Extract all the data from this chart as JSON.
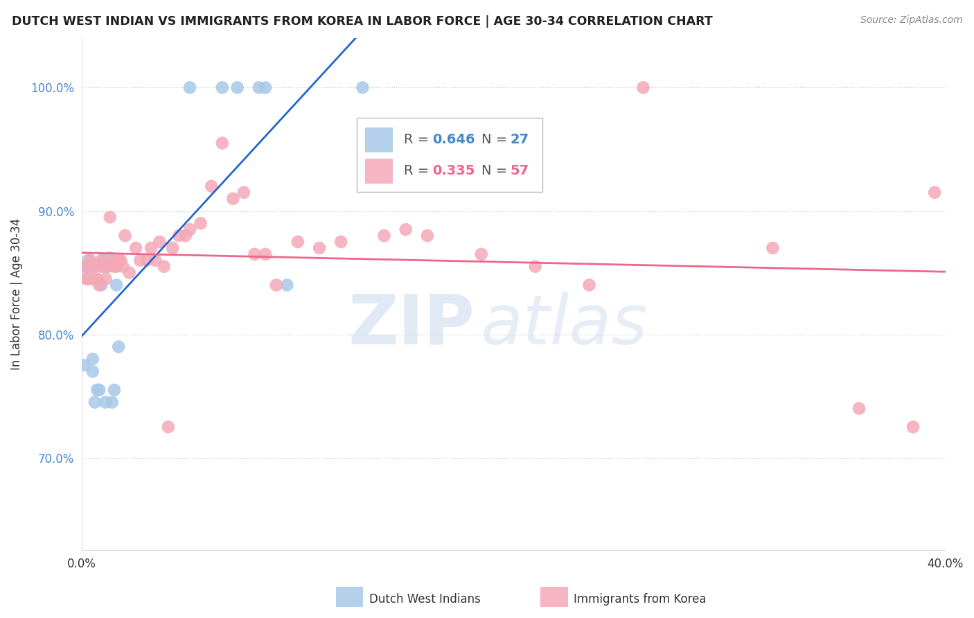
{
  "title": "DUTCH WEST INDIAN VS IMMIGRANTS FROM KOREA IN LABOR FORCE | AGE 30-34 CORRELATION CHART",
  "source": "Source: ZipAtlas.com",
  "ylabel": "In Labor Force | Age 30-34",
  "xlim": [
    0.0,
    0.4
  ],
  "ylim": [
    0.625,
    1.04
  ],
  "xticks": [
    0.0,
    0.05,
    0.1,
    0.15,
    0.2,
    0.25,
    0.3,
    0.35,
    0.4
  ],
  "yticks": [
    0.7,
    0.8,
    0.9,
    1.0
  ],
  "yticklabels": [
    "70.0%",
    "80.0%",
    "90.0%",
    "100.0%"
  ],
  "legend_blue_r": "0.646",
  "legend_blue_n": "27",
  "legend_pink_r": "0.335",
  "legend_pink_n": "57",
  "blue_color": "#A8C8E8",
  "pink_color": "#F4A8B8",
  "blue_line_color": "#2266CC",
  "pink_line_color": "#EE6688",
  "watermark_zip": "ZIP",
  "watermark_atlas": "atlas",
  "blue_x": [
    0.001,
    0.002,
    0.002,
    0.003,
    0.004,
    0.005,
    0.005,
    0.006,
    0.007,
    0.008,
    0.009,
    0.009,
    0.01,
    0.011,
    0.012,
    0.013,
    0.014,
    0.015,
    0.016,
    0.017,
    0.05,
    0.065,
    0.072,
    0.082,
    0.085,
    0.095,
    0.13
  ],
  "blue_y": [
    0.775,
    0.855,
    0.855,
    0.86,
    0.855,
    0.77,
    0.78,
    0.745,
    0.755,
    0.755,
    0.84,
    0.855,
    0.86,
    0.745,
    0.855,
    0.862,
    0.745,
    0.755,
    0.84,
    0.79,
    1.0,
    1.0,
    1.0,
    1.0,
    1.0,
    0.84,
    1.0
  ],
  "pink_x": [
    0.001,
    0.002,
    0.003,
    0.004,
    0.005,
    0.005,
    0.006,
    0.006,
    0.007,
    0.008,
    0.009,
    0.01,
    0.011,
    0.012,
    0.013,
    0.014,
    0.015,
    0.016,
    0.017,
    0.018,
    0.019,
    0.02,
    0.022,
    0.025,
    0.027,
    0.03,
    0.032,
    0.034,
    0.036,
    0.038,
    0.04,
    0.042,
    0.045,
    0.048,
    0.05,
    0.055,
    0.06,
    0.065,
    0.07,
    0.075,
    0.08,
    0.085,
    0.09,
    0.1,
    0.11,
    0.12,
    0.14,
    0.15,
    0.16,
    0.185,
    0.21,
    0.235,
    0.26,
    0.32,
    0.385,
    0.395,
    0.36
  ],
  "pink_y": [
    0.855,
    0.845,
    0.845,
    0.86,
    0.845,
    0.855,
    0.845,
    0.855,
    0.845,
    0.84,
    0.86,
    0.855,
    0.845,
    0.855,
    0.895,
    0.86,
    0.855,
    0.855,
    0.86,
    0.86,
    0.855,
    0.88,
    0.85,
    0.87,
    0.86,
    0.86,
    0.87,
    0.86,
    0.875,
    0.855,
    0.725,
    0.87,
    0.88,
    0.88,
    0.885,
    0.89,
    0.92,
    0.955,
    0.91,
    0.915,
    0.865,
    0.865,
    0.84,
    0.875,
    0.87,
    0.875,
    0.88,
    0.885,
    0.88,
    0.865,
    0.855,
    0.84,
    1.0,
    0.87,
    0.725,
    0.915,
    0.74
  ]
}
